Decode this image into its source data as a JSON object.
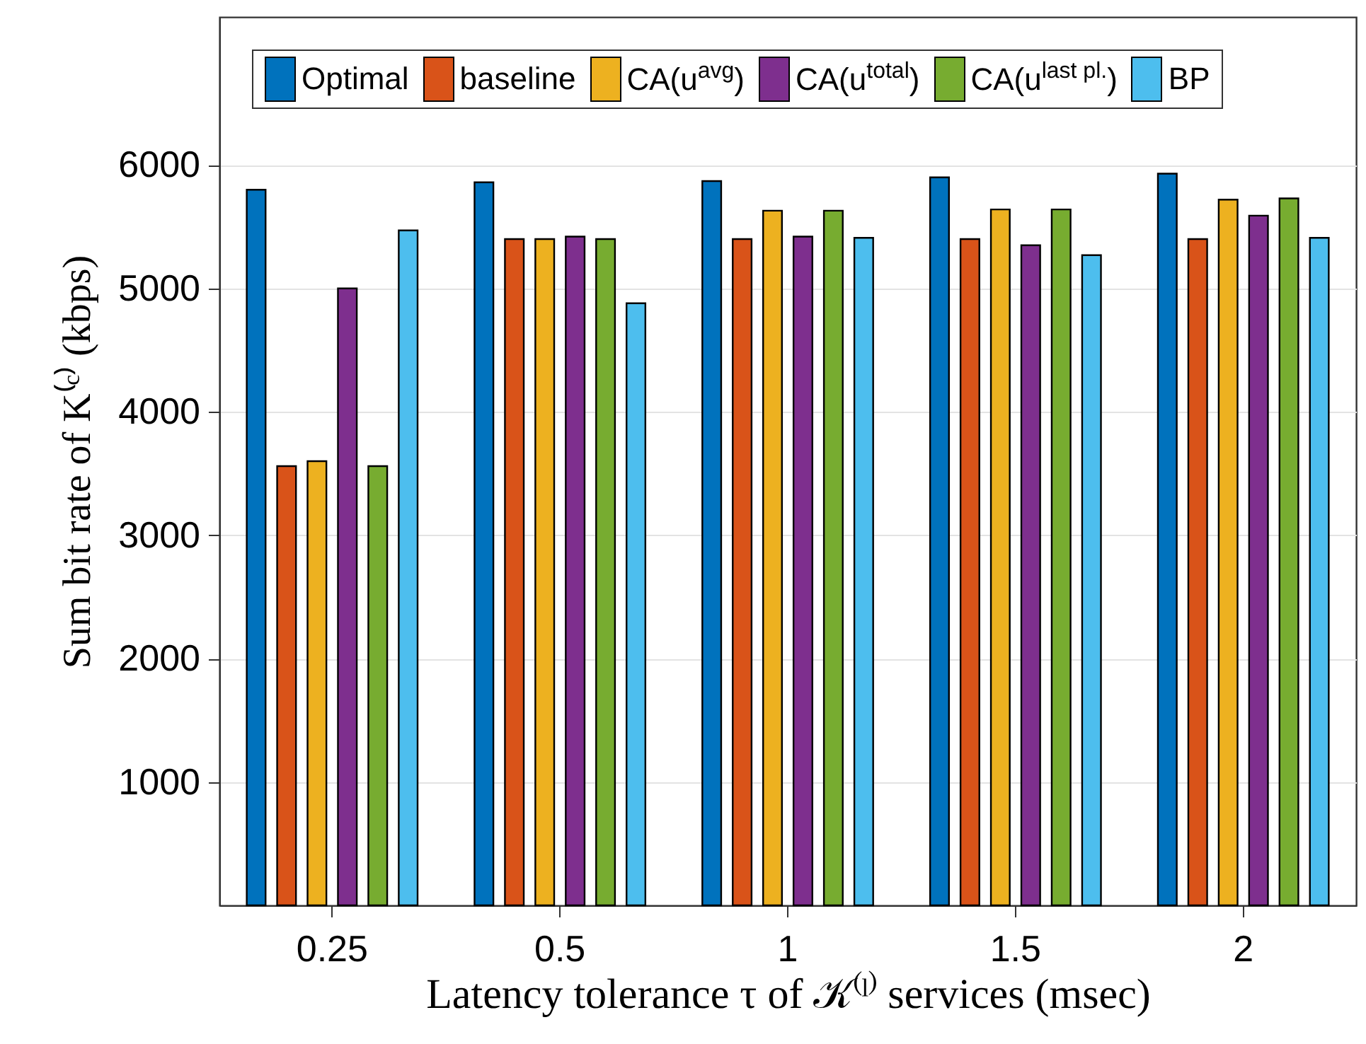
{
  "chart_data": {
    "type": "bar",
    "xlabel": "Latency tolerance τ of 𝒦⁽ˡ⁾ services (msec)",
    "ylabel": "Sum bit rate of K⁽ᶜ⁾ (kbps)",
    "categories": [
      "0.25",
      "0.5",
      "1",
      "1.5",
      "2"
    ],
    "series": [
      {
        "name": "Optimal",
        "color": "#0072bd",
        "values": [
          5800,
          5860,
          5870,
          5900,
          5930
        ]
      },
      {
        "name": "baseline",
        "color": "#d95319",
        "values": [
          3560,
          5400,
          5400,
          5400,
          5400
        ]
      },
      {
        "name": "CA(u$^{avg}$)",
        "color": "#edb120",
        "values": [
          3600,
          5400,
          5630,
          5640,
          5720
        ]
      },
      {
        "name": "CA(u$^{total}$)",
        "color": "#7e2f8e",
        "values": [
          5000,
          5420,
          5420,
          5350,
          5590
        ]
      },
      {
        "name": "CA(u$^{last pl.}$)",
        "color": "#77ac30",
        "values": [
          3560,
          5400,
          5630,
          5640,
          5730
        ]
      },
      {
        "name": "BP",
        "color": "#4dbeee",
        "values": [
          5470,
          4880,
          5410,
          5270,
          5410
        ]
      }
    ],
    "ylim": [
      0,
      7200
    ],
    "yticks": [
      1000,
      2000,
      3000,
      4000,
      5000,
      6000
    ],
    "grid": "y",
    "legend": "top"
  }
}
